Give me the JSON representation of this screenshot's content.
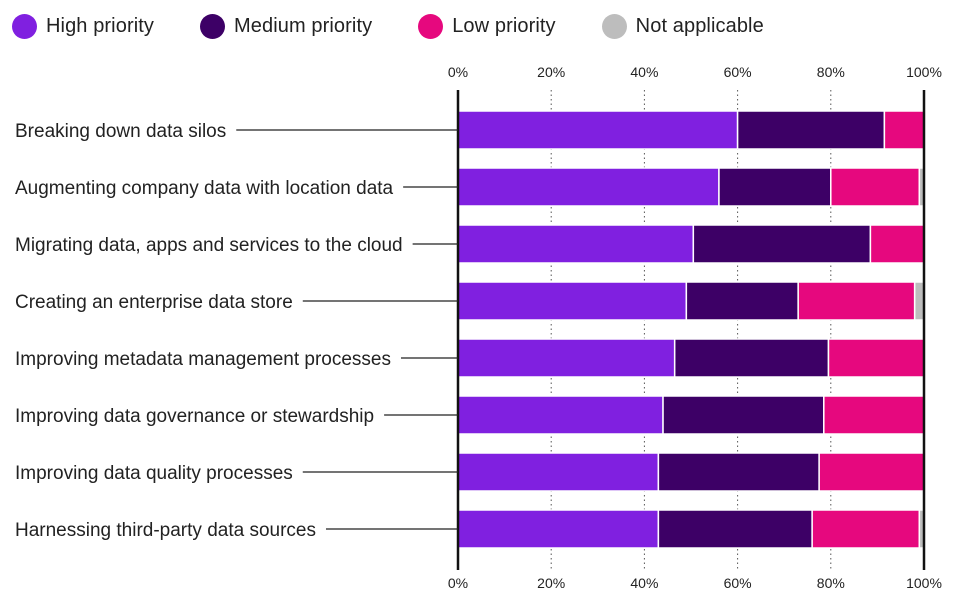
{
  "colors": {
    "high": "#8020e0",
    "medium": "#3d0066",
    "low": "#e6087e",
    "na": "#bdbdbd",
    "axis": "#111111",
    "grid": "#555555",
    "leader": "#222222"
  },
  "legend": [
    {
      "key": "high",
      "label": "High priority"
    },
    {
      "key": "medium",
      "label": "Medium priority"
    },
    {
      "key": "low",
      "label": "Low priority"
    },
    {
      "key": "na",
      "label": "Not applicable"
    }
  ],
  "chart_data": {
    "type": "bar",
    "orientation": "horizontal",
    "stacked": true,
    "xlim": [
      0,
      100
    ],
    "x_ticks": [
      "0%",
      "20%",
      "40%",
      "60%",
      "80%",
      "100%"
    ],
    "grid": "vertical dotted",
    "legend_position": "top-left",
    "categories": [
      "Breaking down data silos",
      "Augmenting company data with location data",
      "Migrating data, apps and services to the cloud",
      "Creating an enterprise data store",
      "Improving metadata management processes",
      "Improving data governance or stewardship",
      "Improving data quality processes",
      "Harnessing third-party data sources"
    ],
    "series": [
      {
        "name": "High priority",
        "key": "high",
        "values": [
          60,
          56,
          50.5,
          49,
          46.5,
          44,
          43,
          43
        ]
      },
      {
        "name": "Medium priority",
        "key": "medium",
        "values": [
          31.5,
          24,
          38,
          24,
          33,
          34.5,
          34.5,
          33
        ]
      },
      {
        "name": "Low priority",
        "key": "low",
        "values": [
          8.5,
          19,
          11.5,
          25,
          20.5,
          21.5,
          22.5,
          23
        ]
      },
      {
        "name": "Not applicable",
        "key": "na",
        "values": [
          0,
          1,
          0,
          2,
          0,
          0,
          0,
          1
        ]
      }
    ]
  }
}
